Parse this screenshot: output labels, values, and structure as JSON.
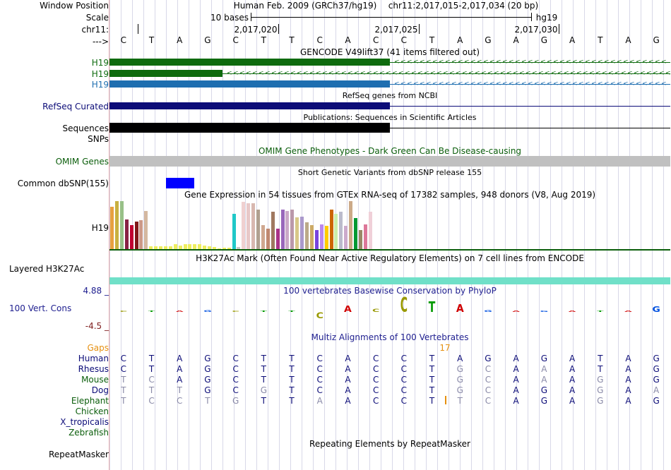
{
  "header": {
    "window_position": "Window Position",
    "assembly": "Human Feb. 2009 (GRCh37/hg19)",
    "position": "chr11:2,017,015-2,017,034 (20 bp)",
    "scale": "Scale",
    "scale_bar_text": "10 bases",
    "scale_db": "hg19",
    "chrom": "chr11:",
    "coord_ticks": [
      "2,017,020",
      "2,017,025",
      "2,017,030"
    ],
    "strand_arrow": "--->",
    "bases": [
      "C",
      "T",
      "A",
      "G",
      "C",
      "T",
      "T",
      "C",
      "A",
      "C",
      "C",
      "T",
      "A",
      "G",
      "A",
      "G",
      "A",
      "T",
      "A",
      "G"
    ]
  },
  "tracks": {
    "gencode_title": "GENCODE V49lift37 (41 items filtered out)",
    "gencode_items": [
      {
        "label": "H19",
        "color": "#0e6b0e"
      },
      {
        "label": "H19",
        "color": "#0e6b0e"
      },
      {
        "label": "H19",
        "color": "#1e6eb0"
      }
    ],
    "refseq_title": "RefSeq genes from NCBI",
    "refseq_label": "RefSeq Curated",
    "refseq_color": "#0c0c78",
    "pubs_title": "Publications: Sequences in Scientific Articles",
    "sequences_label": "Sequences",
    "snps_label": "SNPs",
    "omim_title": "OMIM Gene Phenotypes - Dark Green Can Be Disease-causing",
    "omim_label": "OMIM Genes",
    "omim_color": "#0b5e0b",
    "dbsnp_title": "Short Genetic Variants from dbSNP release 155",
    "dbsnp_label": "Common dbSNP(155)",
    "gtex_title": "Gene Expression in 54 tissues from GTEx RNA-seq of 17382 samples, 948 donors (V8, Aug 2019)",
    "gtex_label": "H19",
    "gtex_values": [
      0.88,
      1.0,
      1.0,
      0.62,
      0.5,
      0.57,
      0.6,
      0.8,
      0.06,
      0.06,
      0.06,
      0.06,
      0.06,
      0.1,
      0.08,
      0.1,
      0.1,
      0.1,
      0.1,
      0.08,
      0.06,
      0.04,
      0.02,
      0.03,
      0.03,
      0.74,
      0.04,
      0.98,
      0.96,
      0.96,
      0.82,
      0.5,
      0.42,
      0.78,
      0.42,
      0.82,
      0.8,
      0.82,
      0.66,
      0.68,
      0.56,
      0.5,
      0.4,
      0.52,
      0.48,
      0.82,
      0.74,
      0.78,
      0.48,
      1.0,
      0.64,
      0.4,
      0.52,
      0.78
    ],
    "gtex_colors": [
      "#e8a040",
      "#c8b040",
      "#98c088",
      "#882244",
      "#c00030",
      "#801818",
      "#cc9988",
      "#d4b8a0",
      "#eeee60",
      "#eeee60",
      "#eeee60",
      "#eeee60",
      "#eeee60",
      "#eeee60",
      "#eeee60",
      "#eeee60",
      "#eeee60",
      "#eeee60",
      "#eeee60",
      "#eeee60",
      "#eeee60",
      "#eeee60",
      "#eeee60",
      "#eeee60",
      "#eeee60",
      "#20c8c8",
      "#c8c8c8",
      "#f0d0d0",
      "#e8c8c8",
      "#d8b8b0",
      "#b0a090",
      "#d0a890",
      "#c08870",
      "#a07860",
      "#aa3388",
      "#9966bb",
      "#caa8c8",
      "#bb99aa",
      "#d8c888",
      "#aa99cc",
      "#bbaa88",
      "#ccaa66",
      "#7744dd",
      "#bb88ee",
      "#ffcc00",
      "#cc6600",
      "#cceeaa",
      "#bbbbcc",
      "#ccaacc",
      "#ccaa88",
      "#009933",
      "#998866",
      "#dd7799",
      "#f0d0d8"
    ],
    "h3k27ac_title": "H3K27Ac Mark (Often Found Near Active Regulatory Elements) on 7 cell lines from ENCODE",
    "h3k27ac_label": "Layered H3K27Ac",
    "phylop_title": "100 vertebrates Basewise Conservation by PhyloP",
    "phylop_max": "4.88 _",
    "phylop_label": "100 Vert. Cons",
    "phylop_min": "-4.5 _",
    "phylop_values": [
      0.3,
      0.25,
      0.4,
      0.6,
      0.45,
      0.3,
      0.2,
      -1.8,
      2.0,
      0.9,
      4.5,
      3.2,
      2.4,
      0.5,
      0.0,
      0.4,
      0.4,
      0.0,
      0.0,
      1.6
    ],
    "multiz_title": "Multiz Alignments of 100 Vertebrates",
    "gaps_label": "Gaps",
    "gaps_value": "17",
    "species": [
      {
        "name": "Human",
        "color": "#0c0c78",
        "bases": [
          "C",
          "T",
          "A",
          "G",
          "C",
          "T",
          "T",
          "C",
          "A",
          "C",
          "C",
          "T",
          "A",
          "G",
          "A",
          "G",
          "A",
          "T",
          "A",
          "G"
        ],
        "dim": []
      },
      {
        "name": "Rhesus",
        "color": "#0c0c78",
        "bases": [
          "C",
          "T",
          "A",
          "G",
          "C",
          "T",
          "T",
          "C",
          "A",
          "C",
          "C",
          "T",
          "G",
          "C",
          "A",
          "A",
          "A",
          "T",
          "A",
          "G"
        ],
        "dim": [
          12,
          13,
          15
        ]
      },
      {
        "name": "Mouse",
        "color": "#0b5e0b",
        "bases": [
          "T",
          "C",
          "A",
          "G",
          "C",
          "T",
          "T",
          "C",
          "A",
          "C",
          "C",
          "T",
          "G",
          "C",
          "A",
          "A",
          "A",
          "G",
          "A",
          "G"
        ],
        "dim": [
          0,
          1,
          12,
          13,
          15,
          17
        ]
      },
      {
        "name": "Dog",
        "color": "#0c0c78",
        "bases": [
          "T",
          "T",
          "T",
          "G",
          "C",
          "G",
          "T",
          "C",
          "A",
          "C",
          "C",
          "T",
          "G",
          "C",
          "A",
          "G",
          "A",
          "G",
          "A",
          "A"
        ],
        "dim": [
          0,
          1,
          2,
          5,
          12,
          13,
          17,
          19
        ]
      },
      {
        "name": "Elephant",
        "color": "#0b5e0b",
        "bases": [
          "T",
          "C",
          "C",
          "T",
          "G",
          "T",
          "T",
          "A",
          "A",
          "C",
          "C",
          "T",
          "T",
          "C",
          "A",
          "G",
          "A",
          "G",
          "A",
          "G"
        ],
        "dim": [
          0,
          1,
          2,
          3,
          4,
          7,
          12,
          13,
          17
        ]
      },
      {
        "name": "Chicken",
        "color": "#0b5e0b",
        "bases": [],
        "dim": []
      },
      {
        "name": "X_tropicalis",
        "color": "#0c0c78",
        "bases": [],
        "dim": []
      },
      {
        "name": "Zebrafish",
        "color": "#0b5e0b",
        "bases": [],
        "dim": []
      }
    ],
    "repeat_title": "Repeating Elements by RepeatMasker",
    "repeat_label": "RepeatMasker"
  },
  "colors": {
    "gaps": "#e69010",
    "gtex_axis": "#0b5e0b",
    "h3k27ac": "#70e0c8",
    "dbsnp": "#0000ff",
    "phylop_pos": "#202090",
    "phylop_neg": "#802020"
  }
}
